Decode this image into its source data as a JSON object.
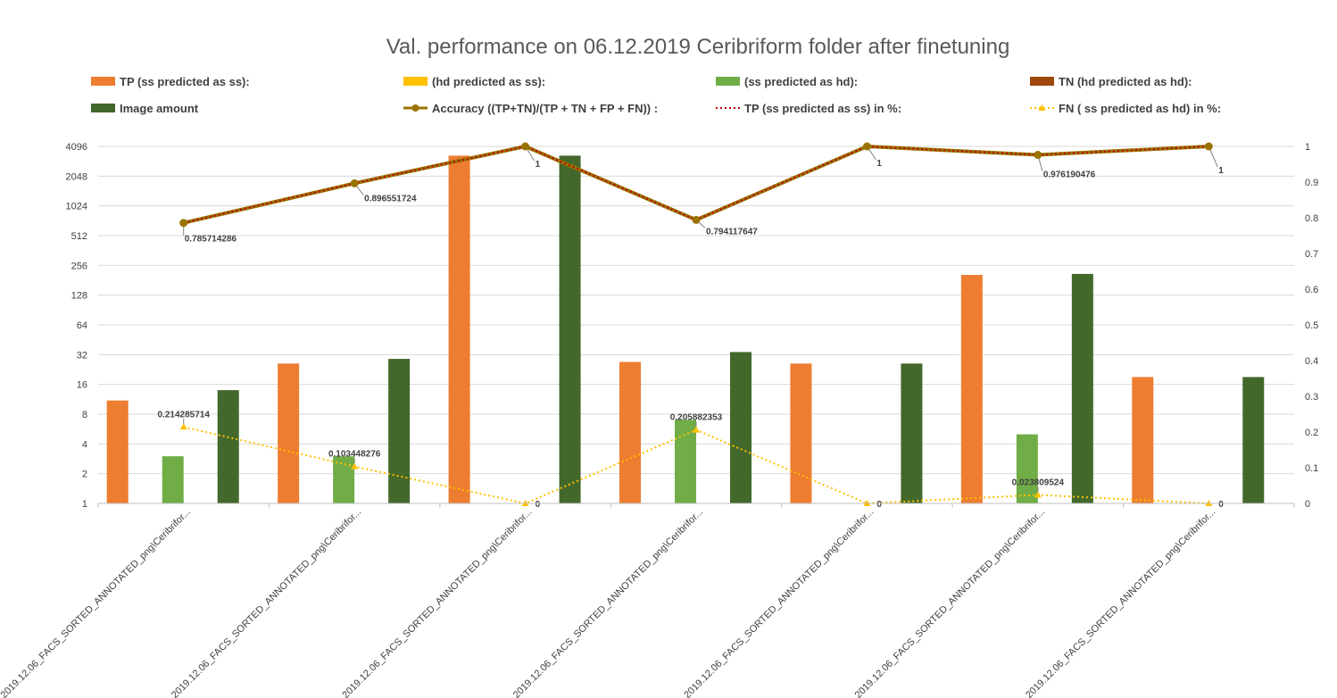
{
  "chart_data": {
    "type": "bar",
    "title": "Val. performance on  06.12.2019 Ceribriform folder after finetuning",
    "legend_position": "top",
    "grid": true,
    "y_left": {
      "scale": "log2",
      "range": [
        1,
        4096
      ],
      "ticks": [
        "1",
        "2",
        "4",
        "8",
        "16",
        "32",
        "64",
        "128",
        "256",
        "512",
        "1024",
        "2048",
        "4096"
      ]
    },
    "y_right": {
      "range": [
        0,
        1
      ],
      "ticks": [
        "0",
        "0.1",
        "0.2",
        "0.3",
        "0.4",
        "0.5",
        "0.6",
        "0.7",
        "0.8",
        "0.9",
        "1"
      ]
    },
    "categories": [
      "2019.12.06_FACS_SORTED_ANNOTATED_png\\Ceribrifor...",
      "2019.12.06_FACS_SORTED_ANNOTATED_png\\Ceribrifor...",
      "2019.12.06_FACS_SORTED_ANNOTATED_png\\Ceribrifor...",
      "2019.12.06_FACS_SORTED_ANNOTATED_png\\Ceribrifor...",
      "2019.12.06_FACS_SORTED_ANNOTATED_png\\Ceribrifor...",
      "2019.12.06_FACS_SORTED_ANNOTATED_png\\Ceribrifor...",
      "2019.12.06_FACS_SORTED_ANNOTATED_png\\Ceribrifor..."
    ],
    "series": [
      {
        "name": "TP (ss predicted as ss):",
        "kind": "bar",
        "axis": "left",
        "color": "#ED7D31",
        "values": [
          11,
          26,
          3300,
          27,
          26,
          205,
          19
        ]
      },
      {
        "name": "(hd predicted as ss):",
        "kind": "bar",
        "axis": "left",
        "color": "#FFC000",
        "values": [
          0,
          0,
          0,
          0,
          0,
          0,
          0
        ]
      },
      {
        "name": "(ss predicted as hd):",
        "kind": "bar",
        "axis": "left",
        "color": "#70AD47",
        "values": [
          3,
          3,
          0,
          7,
          0,
          5,
          0
        ]
      },
      {
        "name": "TN (hd predicted as hd):",
        "kind": "bar",
        "axis": "left",
        "color": "#9E480E",
        "values": [
          0,
          0,
          0,
          0,
          0,
          0,
          0
        ]
      },
      {
        "name": "Image amount",
        "kind": "bar",
        "axis": "left",
        "color": "#43682B",
        "values": [
          14,
          29,
          3300,
          34,
          26,
          210,
          19
        ]
      },
      {
        "name": "Accuracy ((TP+TN)/(TP + TN + FP + FN)) :",
        "kind": "line",
        "axis": "right",
        "color": "#997300",
        "values": [
          0.785714286,
          0.896551724,
          1,
          0.794117647,
          1,
          0.976190476,
          1
        ],
        "labels": [
          "0.785714286",
          "0.896551724",
          "1",
          "0.794117647",
          "1",
          "0.976190476",
          "1"
        ]
      },
      {
        "name": "TP (ss predicted as ss) in %:",
        "kind": "dotted-line",
        "axis": "right",
        "color": "#C00000",
        "values": [
          0.785714286,
          0.896551724,
          1,
          0.794117647,
          1,
          0.976190476,
          1
        ]
      },
      {
        "name": "FN ( ss predicted as hd) in %:",
        "kind": "dotted-line",
        "axis": "right",
        "color": "#FFC000",
        "values": [
          0.214285714,
          0.103448276,
          0,
          0.205882353,
          0,
          0.023809524,
          0
        ],
        "labels": [
          "0.214285714",
          "0.103448276",
          "0",
          "0.205882353",
          "0",
          "0.023809524",
          "0"
        ]
      }
    ]
  }
}
